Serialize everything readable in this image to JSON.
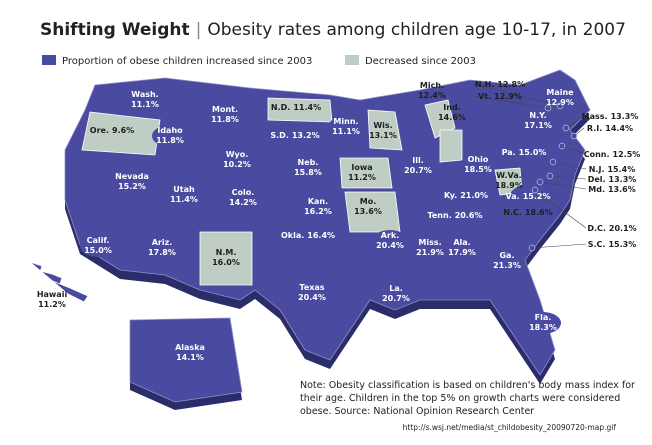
{
  "header": {
    "title": "Shifting Weight",
    "separator": "|",
    "subtitle": "Obesity rates among children age 10-17, in 2007"
  },
  "legend": [
    {
      "label": "Proportion of obese children increased since 2003",
      "color": "#4a4ba0"
    },
    {
      "label": "Decreased since 2003",
      "color": "#bfcdc5"
    }
  ],
  "states": [
    {
      "name": "Wash.",
      "value": "11.1%",
      "color": "#4a4ba0"
    },
    {
      "name": "Ore.",
      "value": "9.6%",
      "color": "#bfcdc5"
    },
    {
      "name": "Idaho",
      "value": "11.8%",
      "color": "#4a4ba0"
    },
    {
      "name": "Mont.",
      "value": "11.8%",
      "color": "#4a4ba0"
    },
    {
      "name": "N.D.",
      "value": "11.4%",
      "color": "#bfcdc5"
    },
    {
      "name": "Minn.",
      "value": "11.1%",
      "color": "#4a4ba0"
    },
    {
      "name": "Wis.",
      "value": "13.1%",
      "color": "#bfcdc5"
    },
    {
      "name": "Mich.",
      "value": "12.4%",
      "color": "#bfcdc5"
    },
    {
      "name": "Ind.",
      "value": "14.6%",
      "color": "#bfcdc5"
    },
    {
      "name": "S.D.",
      "value": "13.2%",
      "color": "#4a4ba0"
    },
    {
      "name": "Wyo.",
      "value": "10.2%",
      "color": "#4a4ba0"
    },
    {
      "name": "Nevada",
      "value": "15.2%",
      "color": "#4a4ba0"
    },
    {
      "name": "Utah",
      "value": "11.4%",
      "color": "#4a4ba0"
    },
    {
      "name": "Colo.",
      "value": "14.2%",
      "color": "#4a4ba0"
    },
    {
      "name": "Neb.",
      "value": "15.8%",
      "color": "#4a4ba0"
    },
    {
      "name": "Iowa",
      "value": "11.2%",
      "color": "#bfcdc5"
    },
    {
      "name": "Ill.",
      "value": "20.7%",
      "color": "#4a4ba0"
    },
    {
      "name": "Ohio",
      "value": "18.5%",
      "color": "#4a4ba0"
    },
    {
      "name": "Pa.",
      "value": "15.0%",
      "color": "#4a4ba0"
    },
    {
      "name": "N.Y.",
      "value": "17.1%",
      "color": "#4a4ba0"
    },
    {
      "name": "Maine",
      "value": "12.9%",
      "color": "#4a4ba0"
    },
    {
      "name": "N.H.",
      "value": "12.8%",
      "color": "#4a4ba0"
    },
    {
      "name": "Vt.",
      "value": "12.9%",
      "color": "#4a4ba0"
    },
    {
      "name": "Mass.",
      "value": "13.3%",
      "color": "#4a4ba0"
    },
    {
      "name": "R.I.",
      "value": "14.4%",
      "color": "#4a4ba0"
    },
    {
      "name": "Conn.",
      "value": "12.5%",
      "color": "#4a4ba0"
    },
    {
      "name": "N.J.",
      "value": "15.4%",
      "color": "#4a4ba0"
    },
    {
      "name": "Del.",
      "value": "13.3%",
      "color": "#4a4ba0"
    },
    {
      "name": "Md.",
      "value": "13.6%",
      "color": "#4a4ba0"
    },
    {
      "name": "W.Va.",
      "value": "18.9%",
      "color": "#bfcdc5"
    },
    {
      "name": "Va.",
      "value": "15.2%",
      "color": "#4a4ba0"
    },
    {
      "name": "Ky.",
      "value": "21.0%",
      "color": "#4a4ba0"
    },
    {
      "name": "Mo.",
      "value": "13.6%",
      "color": "#bfcdc5"
    },
    {
      "name": "Kan.",
      "value": "16.2%",
      "color": "#4a4ba0"
    },
    {
      "name": "Tenn.",
      "value": "20.6%",
      "color": "#4a4ba0"
    },
    {
      "name": "N.C.",
      "value": "18.6%",
      "color": "#4a4ba0"
    },
    {
      "name": "D.C.",
      "value": "20.1%",
      "color": "#4a4ba0"
    },
    {
      "name": "S.C.",
      "value": "15.3%",
      "color": "#4a4ba0"
    },
    {
      "name": "Calif.",
      "value": "15.0%",
      "color": "#4a4ba0"
    },
    {
      "name": "Ariz.",
      "value": "17.8%",
      "color": "#4a4ba0"
    },
    {
      "name": "N.M.",
      "value": "16.0%",
      "color": "#bfcdc5"
    },
    {
      "name": "Okla.",
      "value": "16.4%",
      "color": "#4a4ba0"
    },
    {
      "name": "Ark.",
      "value": "20.4%",
      "color": "#4a4ba0"
    },
    {
      "name": "Miss.",
      "value": "21.9%",
      "color": "#4a4ba0"
    },
    {
      "name": "Ala.",
      "value": "17.9%",
      "color": "#4a4ba0"
    },
    {
      "name": "Ga.",
      "value": "21.3%",
      "color": "#4a4ba0"
    },
    {
      "name": "Texas",
      "value": "20.4%",
      "color": "#4a4ba0"
    },
    {
      "name": "La.",
      "value": "20.7%",
      "color": "#4a4ba0"
    },
    {
      "name": "Fla.",
      "value": "18.3%",
      "color": "#4a4ba0"
    },
    {
      "name": "Hawaii",
      "value": "11.2%",
      "color": "#4a4ba0"
    },
    {
      "name": "Alaska",
      "value": "14.1%",
      "color": "#4a4ba0"
    }
  ],
  "note": [
    "Note: Obesity classification is based on children's body mass index for",
    "their age. Children in the top 5% on growth charts were considered",
    "obese.  Source: National Opinion Research Center"
  ],
  "source_url": "http://s.wsj.net/media/st_childobesity_20090720-map.gif"
}
